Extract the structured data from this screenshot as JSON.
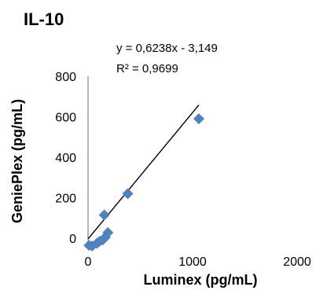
{
  "chart_data": {
    "type": "scatter",
    "title": "IL-10",
    "xlabel": "Luminex  (pg/mL)",
    "ylabel": "GeniePlex  (pg/mL)",
    "xlim": [
      0,
      2000
    ],
    "ylim": [
      -50,
      800
    ],
    "x_ticks": [
      0,
      1000,
      2000
    ],
    "y_ticks": [
      0,
      200,
      400,
      600,
      800
    ],
    "grid": false,
    "legend": "none",
    "marker": "diamond",
    "marker_color": "#4f81bd",
    "points": [
      {
        "x": 10,
        "y": -35
      },
      {
        "x": 40,
        "y": -38
      },
      {
        "x": 85,
        "y": -25
      },
      {
        "x": 110,
        "y": -15
      },
      {
        "x": 140,
        "y": -8
      },
      {
        "x": 165,
        "y": 5
      },
      {
        "x": 190,
        "y": 28
      },
      {
        "x": 155,
        "y": 115
      },
      {
        "x": 380,
        "y": 220
      },
      {
        "x": 1060,
        "y": 590
      }
    ],
    "trendline": {
      "type": "linear",
      "slope": 0.6238,
      "intercept": -3.149,
      "x_range": [
        0,
        1060
      ],
      "equation_text": "y = 0,6238x - 3,149",
      "r2_text": "R² = 0,9699",
      "color": "#000000"
    }
  }
}
